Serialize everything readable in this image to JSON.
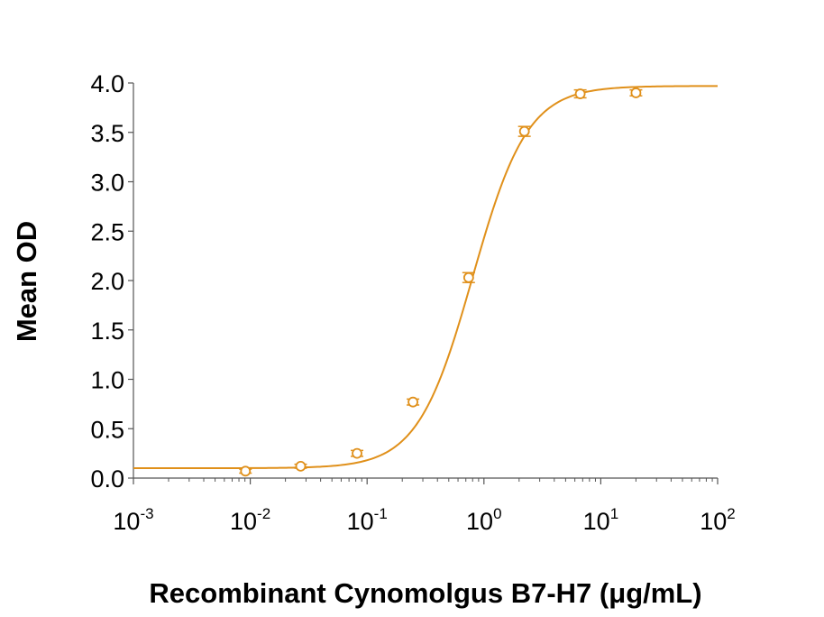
{
  "chart_data": {
    "type": "scatter",
    "title": "",
    "xlabel": "Recombinant Cynomolgus B7-H7 (μg/mL)",
    "ylabel": "Mean OD",
    "x_scale": "log",
    "xlim": [
      0.001,
      100
    ],
    "ylim": [
      0,
      4.0
    ],
    "x_ticks": [
      {
        "base": "10",
        "exp": "-3"
      },
      {
        "base": "10",
        "exp": "-2"
      },
      {
        "base": "10",
        "exp": "-1"
      },
      {
        "base": "10",
        "exp": "0"
      },
      {
        "base": "10",
        "exp": "1"
      },
      {
        "base": "10",
        "exp": "2"
      }
    ],
    "y_ticks": [
      "0.0",
      "0.5",
      "1.0",
      "1.5",
      "2.0",
      "2.5",
      "3.0",
      "3.5",
      "4.0"
    ],
    "grid": false,
    "color": "#E0901A",
    "series": [
      {
        "x": [
          0.0091,
          0.027,
          0.082,
          0.247,
          0.74,
          2.22,
          6.67,
          20
        ],
        "y": [
          0.07,
          0.12,
          0.25,
          0.77,
          2.03,
          3.51,
          3.89,
          3.9
        ],
        "error": [
          0.02,
          0.02,
          0.03,
          0.03,
          0.05,
          0.05,
          0.04,
          0.03
        ]
      }
    ],
    "fit": {
      "model": "4PL",
      "bottom": 0.1,
      "top": 3.97,
      "ec50": 0.8,
      "hill": 1.85
    }
  }
}
